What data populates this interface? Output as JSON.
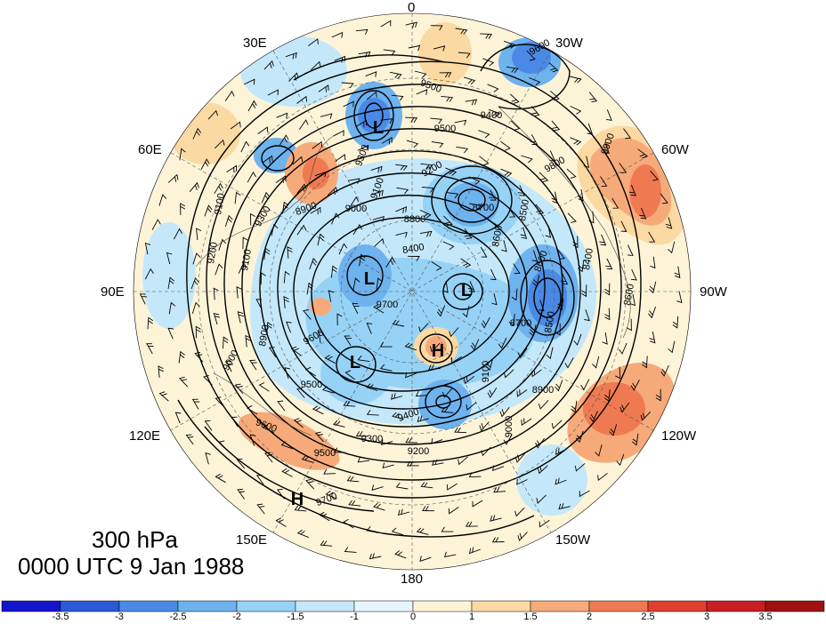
{
  "map": {
    "level": "300 hPa",
    "timestamp": "0000 UTC 9 Jan 1988",
    "longitude_labels": {
      "lon_0": "0",
      "lon_30w": "30W",
      "lon_60w": "60W",
      "lon_90w": "90W",
      "lon_120w": "120W",
      "lon_150w": "150W",
      "lon_180": "180",
      "lon_150e": "150E",
      "lon_120e": "120E",
      "lon_90e": "90E",
      "lon_60e": "60E",
      "lon_30e": "30E"
    },
    "centers": [
      {
        "label": "L",
        "type": "low"
      },
      {
        "label": "L",
        "type": "low"
      },
      {
        "label": "L",
        "type": "low"
      },
      {
        "label": "L",
        "type": "low"
      },
      {
        "label": "H",
        "type": "high"
      },
      {
        "label": "H",
        "type": "high"
      }
    ],
    "contour_labels": [
      "9600",
      "9500",
      "9500",
      "9400",
      "9300",
      "9200",
      "9100",
      "9000",
      "8900",
      "8800",
      "8700",
      "8600",
      "8500",
      "8400",
      "9700",
      "9600",
      "9500",
      "9400",
      "9300",
      "9200",
      "9100",
      "9000",
      "8900",
      "8700",
      "9700",
      "9600",
      "9500",
      "9300",
      "9100",
      "9200",
      "9100",
      "8900",
      "9000",
      "8600",
      "8500",
      "8400",
      "8600",
      "9900",
      "9800"
    ]
  },
  "colorbar": {
    "ticks": [
      "-3.5",
      "-3",
      "-2.5",
      "-2",
      "-1.5",
      "-1",
      "0",
      "1",
      "1.5",
      "2",
      "2.5",
      "3",
      "3.5"
    ],
    "colors": [
      "#1414cc",
      "#2a5ad6",
      "#4a8ae6",
      "#6eb2ee",
      "#96d2f6",
      "#c4e8fa",
      "#e6f6fc",
      "#fdf4d8",
      "#fbd9a2",
      "#f6aa7a",
      "#ef7a52",
      "#e04030",
      "#c81e24",
      "#a01010"
    ]
  }
}
